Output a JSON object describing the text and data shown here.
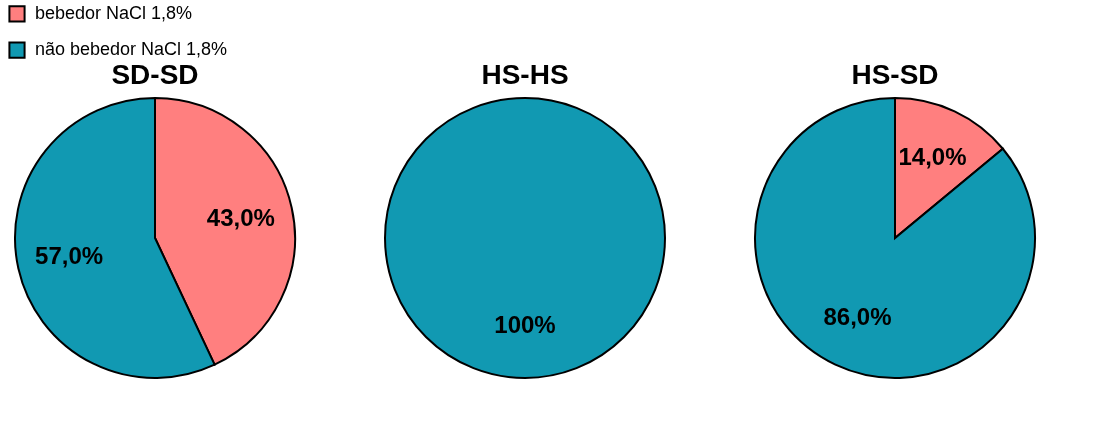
{
  "chart_data": [
    {
      "type": "pie",
      "title": "SD-SD",
      "categories": [
        "bebedor NaCl 1,8%",
        "não bebedor NaCl 1,8%"
      ],
      "values": [
        43,
        57
      ],
      "colors": [
        "#ff7f7f",
        "#1199b2"
      ],
      "value_labels": [
        "43,0%",
        "57,0%"
      ],
      "legend": "top left"
    },
    {
      "type": "pie",
      "title": "HS-HS",
      "categories": [
        null,
        null
      ],
      "values": [
        0,
        100
      ],
      "colors": [
        "#ff7f7f",
        "#1199b2"
      ],
      "value_labels": [
        null,
        "100%"
      ]
    },
    {
      "type": "pie",
      "title": "HS-SD",
      "categories": [
        null,
        null
      ],
      "values": [
        14,
        86
      ],
      "colors": [
        "#ff7f7f",
        "#1199b2"
      ],
      "value_labels": [
        "14,0%",
        "86,0%"
      ]
    }
  ]
}
